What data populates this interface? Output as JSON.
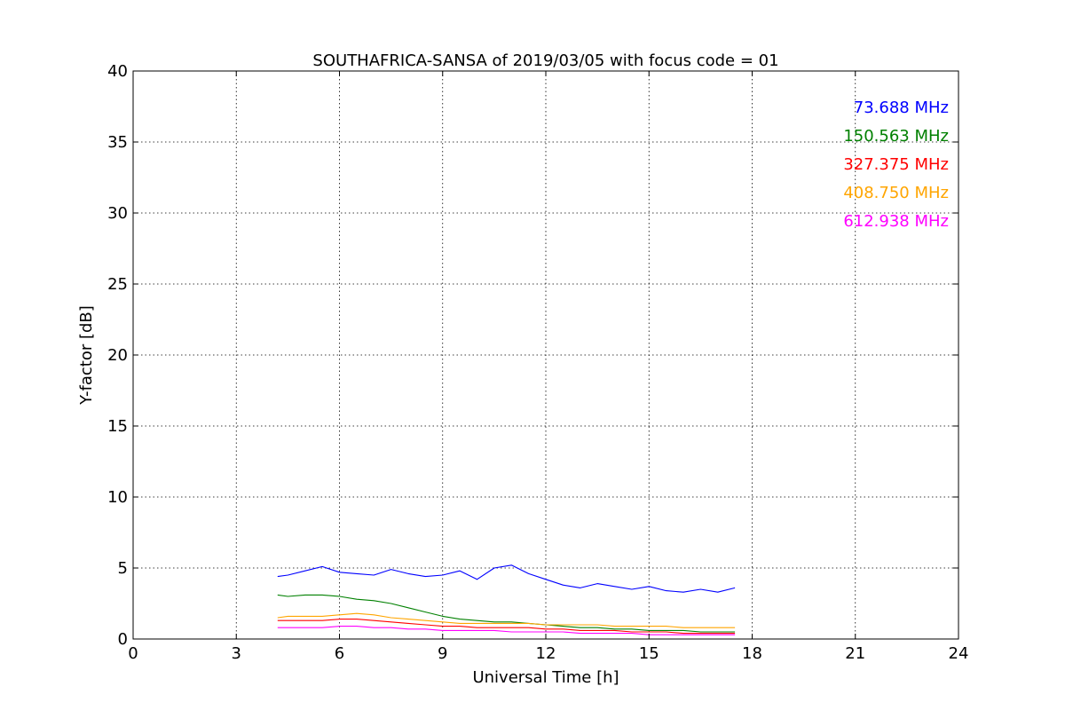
{
  "chart_data": {
    "type": "line",
    "title": "SOUTHAFRICA-SANSA of 2019/03/05 with focus code = 01",
    "xlabel": "Universal Time [h]",
    "ylabel": "Y-factor [dB]",
    "xlim": [
      0,
      24
    ],
    "ylim": [
      0,
      40
    ],
    "x_ticks": [
      "0",
      "3",
      "6",
      "9",
      "12",
      "15",
      "18",
      "21",
      "24"
    ],
    "y_ticks": [
      "0",
      "5",
      "10",
      "15",
      "20",
      "25",
      "30",
      "35",
      "40"
    ],
    "grid": true,
    "legend_position": "top-right",
    "series": [
      {
        "name": "73.688 MHz",
        "color": "#0000ff",
        "x": [
          4.2,
          4.5,
          5.0,
          5.5,
          6.0,
          6.5,
          7.0,
          7.5,
          8.0,
          8.5,
          9.0,
          9.5,
          10.0,
          10.5,
          11.0,
          11.5,
          12.0,
          12.5,
          13.0,
          13.5,
          14.0,
          14.5,
          15.0,
          15.5,
          16.0,
          16.5,
          17.0,
          17.5
        ],
        "y": [
          4.4,
          4.5,
          4.8,
          5.1,
          4.7,
          4.6,
          4.5,
          4.9,
          4.6,
          4.4,
          4.5,
          4.8,
          4.2,
          5.0,
          5.2,
          4.6,
          4.2,
          3.8,
          3.6,
          3.9,
          3.7,
          3.5,
          3.7,
          3.4,
          3.3,
          3.5,
          3.3,
          3.6
        ]
      },
      {
        "name": "150.563 MHz",
        "color": "#008000",
        "x": [
          4.2,
          4.5,
          5.0,
          5.5,
          6.0,
          6.5,
          7.0,
          7.5,
          8.0,
          8.5,
          9.0,
          9.5,
          10.0,
          10.5,
          11.0,
          11.5,
          12.0,
          12.5,
          13.0,
          13.5,
          14.0,
          14.5,
          15.0,
          15.5,
          16.0,
          16.5,
          17.0,
          17.5
        ],
        "y": [
          3.1,
          3.0,
          3.1,
          3.1,
          3.0,
          2.8,
          2.7,
          2.5,
          2.2,
          1.9,
          1.6,
          1.4,
          1.3,
          1.2,
          1.2,
          1.1,
          1.0,
          0.9,
          0.8,
          0.8,
          0.7,
          0.7,
          0.6,
          0.6,
          0.6,
          0.5,
          0.5,
          0.5
        ]
      },
      {
        "name": "327.375 MHz",
        "color": "#ff0000",
        "x": [
          4.2,
          4.5,
          5.0,
          5.5,
          6.0,
          6.5,
          7.0,
          7.5,
          8.0,
          8.5,
          9.0,
          9.5,
          10.0,
          10.5,
          11.0,
          11.5,
          12.0,
          12.5,
          13.0,
          13.5,
          14.0,
          14.5,
          15.0,
          15.5,
          16.0,
          16.5,
          17.0,
          17.5
        ],
        "y": [
          1.3,
          1.3,
          1.3,
          1.3,
          1.4,
          1.4,
          1.3,
          1.2,
          1.1,
          1.0,
          0.9,
          0.9,
          0.8,
          0.8,
          0.8,
          0.8,
          0.7,
          0.7,
          0.6,
          0.6,
          0.6,
          0.5,
          0.5,
          0.5,
          0.4,
          0.4,
          0.4,
          0.4
        ]
      },
      {
        "name": "408.750 MHz",
        "color": "#ffa500",
        "x": [
          4.2,
          4.5,
          5.0,
          5.5,
          6.0,
          6.5,
          7.0,
          7.5,
          8.0,
          8.5,
          9.0,
          9.5,
          10.0,
          10.5,
          11.0,
          11.5,
          12.0,
          12.5,
          13.0,
          13.5,
          14.0,
          14.5,
          15.0,
          15.5,
          16.0,
          16.5,
          17.0,
          17.5
        ],
        "y": [
          1.5,
          1.6,
          1.6,
          1.6,
          1.7,
          1.8,
          1.7,
          1.5,
          1.4,
          1.3,
          1.2,
          1.1,
          1.1,
          1.1,
          1.1,
          1.1,
          1.0,
          1.0,
          1.0,
          1.0,
          0.9,
          0.9,
          0.9,
          0.9,
          0.8,
          0.8,
          0.8,
          0.8
        ]
      },
      {
        "name": "612.938 MHz",
        "color": "#ff00ff",
        "x": [
          4.2,
          4.5,
          5.0,
          5.5,
          6.0,
          6.5,
          7.0,
          7.5,
          8.0,
          8.5,
          9.0,
          9.5,
          10.0,
          10.5,
          11.0,
          11.5,
          12.0,
          12.5,
          13.0,
          13.5,
          14.0,
          14.5,
          15.0,
          15.5,
          16.0,
          16.5,
          17.0,
          17.5
        ],
        "y": [
          0.8,
          0.8,
          0.8,
          0.8,
          0.9,
          0.9,
          0.8,
          0.8,
          0.7,
          0.7,
          0.6,
          0.6,
          0.6,
          0.6,
          0.5,
          0.5,
          0.5,
          0.5,
          0.4,
          0.4,
          0.4,
          0.4,
          0.3,
          0.3,
          0.3,
          0.3,
          0.3,
          0.3
        ]
      }
    ]
  }
}
